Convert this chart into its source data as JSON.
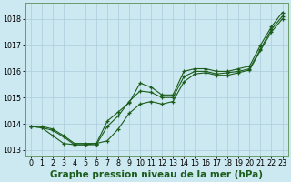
{
  "xlabel": "Graphe pression niveau de la mer (hPa)",
  "ylim": [
    1012.8,
    1018.6
  ],
  "xlim": [
    -0.5,
    23.5
  ],
  "yticks": [
    1013,
    1014,
    1015,
    1016,
    1017,
    1018
  ],
  "xticks": [
    0,
    1,
    2,
    3,
    4,
    5,
    6,
    7,
    8,
    9,
    10,
    11,
    12,
    13,
    14,
    15,
    16,
    17,
    18,
    19,
    20,
    21,
    22,
    23
  ],
  "bg_color": "#cce8f0",
  "grid_color": "#aaccdd",
  "line_color": "#1a5c1a",
  "line1": [
    1013.9,
    1013.9,
    1013.8,
    1013.55,
    1013.25,
    1013.25,
    1013.25,
    1014.1,
    1014.45,
    1014.8,
    1015.55,
    1015.4,
    1015.1,
    1015.1,
    1016.0,
    1016.1,
    1016.1,
    1016.0,
    1016.0,
    1016.1,
    1016.2,
    1017.0,
    1017.7,
    1018.25
  ],
  "line2": [
    1013.9,
    1013.85,
    1013.75,
    1013.5,
    1013.2,
    1013.2,
    1013.2,
    1013.9,
    1014.3,
    1014.85,
    1015.25,
    1015.2,
    1015.0,
    1015.0,
    1015.8,
    1016.0,
    1016.0,
    1015.9,
    1015.95,
    1016.0,
    1016.1,
    1016.85,
    1017.6,
    1018.1
  ],
  "line3": [
    1013.9,
    1013.85,
    1013.55,
    1013.25,
    1013.2,
    1013.2,
    1013.25,
    1013.35,
    1013.8,
    1014.4,
    1014.75,
    1014.85,
    1014.75,
    1014.85,
    1015.6,
    1015.9,
    1015.95,
    1015.85,
    1015.85,
    1015.95,
    1016.05,
    1016.8,
    1017.5,
    1018.0
  ],
  "label_fontsize": 7.5,
  "tick_fontsize": 5.8,
  "fig_width": 3.2,
  "fig_height": 2.0,
  "dpi": 100
}
